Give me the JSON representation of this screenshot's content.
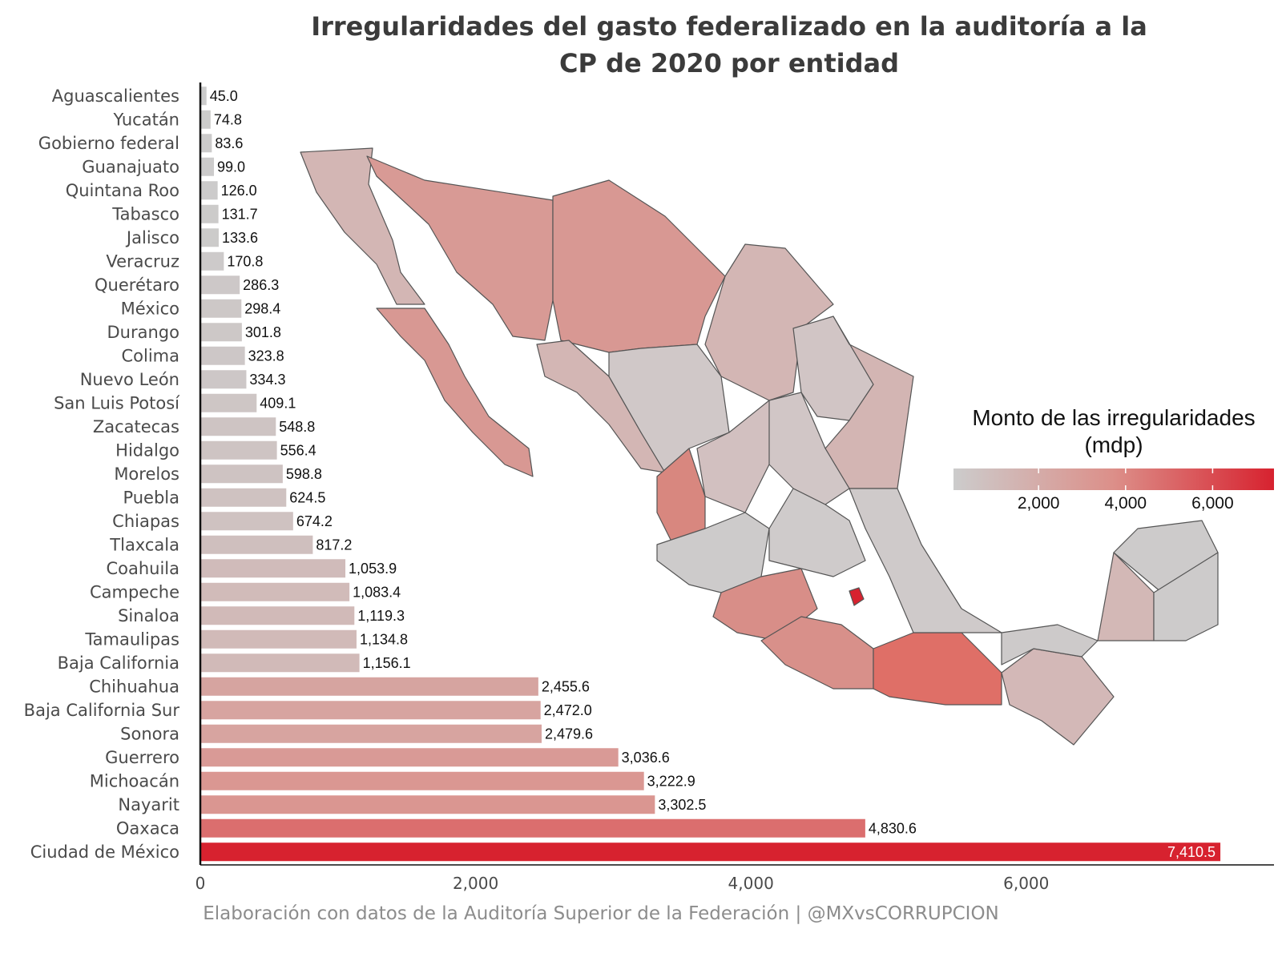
{
  "title": "Irregularidades del gasto federalizado en la auditoría a la CP de 2020 por entidad",
  "caption": "Elaboración con datos de la Auditoría Superior de la Federación | @MXvsCORRUPCION",
  "colors": {
    "low": "#cccccc",
    "high": "#d7222f",
    "axis": "#111111"
  },
  "legend": {
    "title": "Monto de las irregularidades (mdp)",
    "ticks": [
      "2,000",
      "4,000",
      "6,000"
    ],
    "tick_values": [
      2000,
      4000,
      6000
    ],
    "range": [
      45,
      7410.5
    ]
  },
  "map": {
    "type": "choropleth",
    "region": "Mexico by state",
    "value_field": "monto"
  },
  "chart_data": {
    "type": "bar",
    "orientation": "horizontal",
    "title": "Irregularidades del gasto federalizado en la auditoría a la CP de 2020 por entidad",
    "xlabel": "",
    "ylabel": "",
    "xlim": [
      0,
      7800
    ],
    "xticks": [
      0,
      2000,
      4000,
      6000
    ],
    "xtick_labels": [
      "0",
      "2,000",
      "4,000",
      "6,000"
    ],
    "categories": [
      "Aguascalientes",
      "Yucatán",
      "Gobierno federal",
      "Guanajuato",
      "Quintana Roo",
      "Tabasco",
      "Jalisco",
      "Veracruz",
      "Querétaro",
      "México",
      "Durango",
      "Colima",
      "Nuevo León",
      "San Luis Potosí",
      "Zacatecas",
      "Hidalgo",
      "Morelos",
      "Puebla",
      "Chiapas",
      "Tlaxcala",
      "Coahuila",
      "Campeche",
      "Sinaloa",
      "Tamaulipas",
      "Baja California",
      "Chihuahua",
      "Baja California Sur",
      "Sonora",
      "Guerrero",
      "Michoacán",
      "Nayarit",
      "Oaxaca",
      "Ciudad de México"
    ],
    "values": [
      45.0,
      74.8,
      83.6,
      99.0,
      126.0,
      131.7,
      133.6,
      170.8,
      286.3,
      298.4,
      301.8,
      323.8,
      334.3,
      409.1,
      548.8,
      556.4,
      598.8,
      624.5,
      674.2,
      817.2,
      1053.9,
      1083.4,
      1119.3,
      1134.8,
      1156.1,
      2455.6,
      2472.0,
      2479.6,
      3036.6,
      3222.9,
      3302.5,
      4830.6,
      7410.5
    ],
    "value_labels": [
      "45.0",
      "74.8",
      "83.6",
      "99.0",
      "126.0",
      "131.7",
      "133.6",
      "170.8",
      "286.3",
      "298.4",
      "301.8",
      "323.8",
      "334.3",
      "409.1",
      "548.8",
      "556.4",
      "598.8",
      "624.5",
      "674.2",
      "817.2",
      "1,053.9",
      "1,083.4",
      "1,119.3",
      "1,134.8",
      "1,156.1",
      "2,455.6",
      "2,472.0",
      "2,479.6",
      "3,036.6",
      "3,222.9",
      "3,302.5",
      "4,830.6",
      "7,410.5"
    ]
  }
}
